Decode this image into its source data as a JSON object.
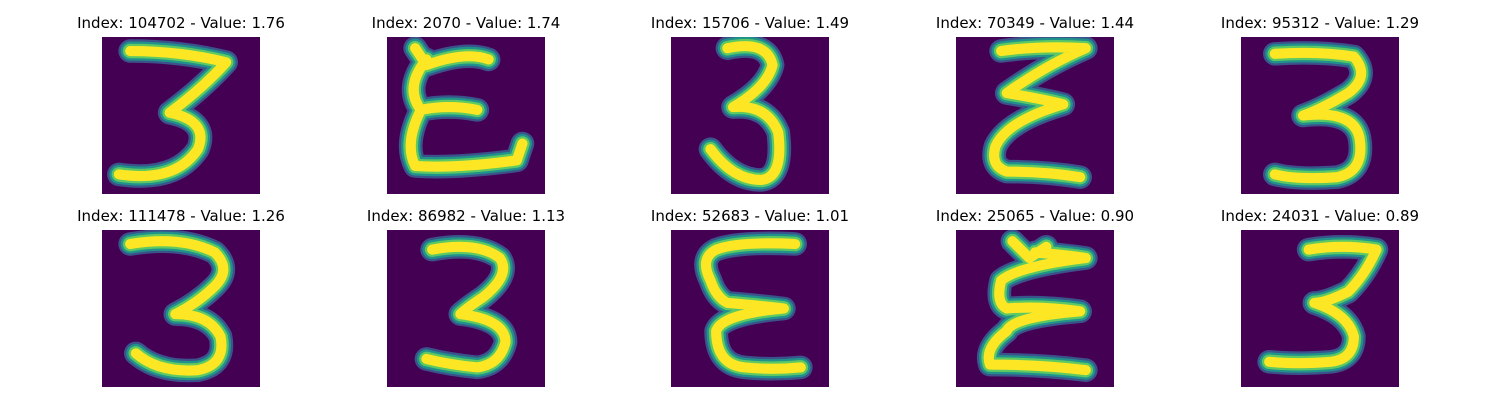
{
  "colors": {
    "background": "#440154",
    "stroke_core": "#fde725",
    "stroke_mid": "#5ec962",
    "stroke_edge": "#21918c",
    "stroke_halo": "#3b528b"
  },
  "panels": [
    {
      "title": "Index: 104702 - Value: 1.76",
      "glyph": "3",
      "index": 104702,
      "value": 1.76
    },
    {
      "title": "Index: 2070 - Value: 1.74",
      "glyph": "E",
      "index": 2070,
      "value": 1.74
    },
    {
      "title": "Index: 15706 - Value: 1.49",
      "glyph": "3",
      "index": 15706,
      "value": 1.49
    },
    {
      "title": "Index: 70349 - Value: 1.44",
      "glyph": "E",
      "index": 70349,
      "value": 1.44
    },
    {
      "title": "Index: 95312 - Value: 1.29",
      "glyph": "3",
      "index": 95312,
      "value": 1.29
    },
    {
      "title": "Index: 111478 - Value: 1.26",
      "glyph": "3",
      "index": 111478,
      "value": 1.26
    },
    {
      "title": "Index: 86982 - Value: 1.13",
      "glyph": "3",
      "index": 86982,
      "value": 1.13
    },
    {
      "title": "Index: 52683 - Value: 1.01",
      "glyph": "E",
      "index": 52683,
      "value": 1.01
    },
    {
      "title": "Index: 25065 - Value: 0.90",
      "glyph": "E",
      "index": 25065,
      "value": 0.9
    },
    {
      "title": "Index: 24031 - Value: 0.89",
      "glyph": "3",
      "index": 24031,
      "value": 0.89
    }
  ]
}
